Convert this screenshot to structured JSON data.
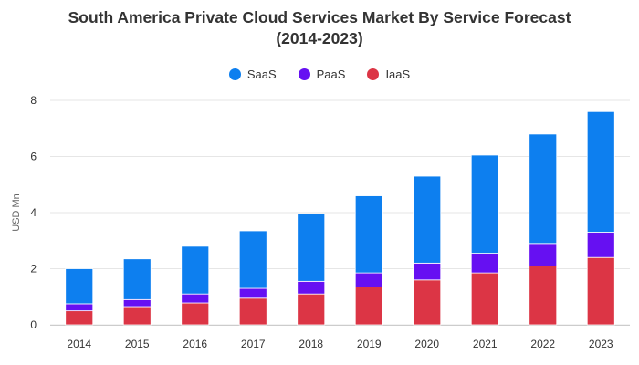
{
  "chart_data": {
    "type": "bar",
    "stacked": true,
    "title_line1": "South America Private Cloud Services Market By Service Forecast",
    "title_line2": "(2014-2023)",
    "xlabel": "",
    "ylabel": "USD Mn",
    "ylim": [
      0,
      8
    ],
    "yticks": [
      0,
      2,
      4,
      6,
      8
    ],
    "categories": [
      "2014",
      "2015",
      "2016",
      "2017",
      "2018",
      "2019",
      "2020",
      "2021",
      "2022",
      "2023"
    ],
    "series": [
      {
        "name": "IaaS",
        "color": "#dc3545",
        "values": [
          0.5,
          0.65,
          0.78,
          0.95,
          1.1,
          1.35,
          1.6,
          1.85,
          2.1,
          2.4
        ]
      },
      {
        "name": "PaaS",
        "color": "#6610f2",
        "values": [
          0.25,
          0.25,
          0.32,
          0.35,
          0.45,
          0.5,
          0.6,
          0.7,
          0.8,
          0.9
        ]
      },
      {
        "name": "SaaS",
        "color": "#0d7fef",
        "values": [
          1.25,
          1.45,
          1.7,
          2.05,
          2.4,
          2.75,
          3.1,
          3.5,
          3.9,
          4.3
        ]
      }
    ],
    "legend_order": [
      "SaaS",
      "PaaS",
      "IaaS"
    ],
    "legend_position": "top-center",
    "grid": true
  }
}
